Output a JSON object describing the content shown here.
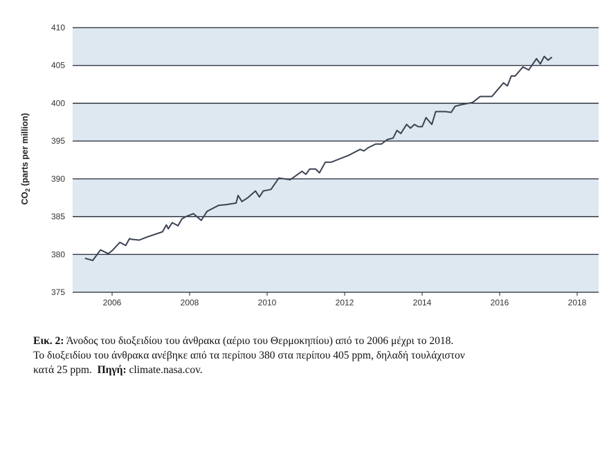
{
  "chart_data": {
    "type": "line",
    "title": "",
    "xlabel": "",
    "ylabel_main": "CO",
    "ylabel_sub": "2",
    "ylabel_rest": " (parts per million)",
    "xlim": [
      2005,
      2018.5
    ],
    "ylim": [
      375,
      410
    ],
    "xticks": [
      2006,
      2008,
      2010,
      2012,
      2014,
      2016,
      2018
    ],
    "xtick_labels": [
      "2006",
      "2008",
      "2010",
      "2012",
      "2014",
      "2016",
      "2018"
    ],
    "yticks": [
      375,
      380,
      385,
      390,
      395,
      400,
      405,
      410
    ],
    "ytick_labels": [
      "375",
      "380",
      "385",
      "390",
      "395",
      "400",
      "405",
      "410"
    ],
    "band_color": "#dde8f0",
    "line_color": "#3a4252",
    "grid_color": "#1e2430",
    "series": [
      {
        "name": "CO2",
        "x": [
          2005.3,
          2005.5,
          2005.7,
          2005.9,
          2006.0,
          2006.2,
          2006.35,
          2006.45,
          2006.5,
          2006.7,
          2006.9,
          2007.3,
          2007.4,
          2007.45,
          2007.55,
          2007.7,
          2007.8,
          2007.9,
          2008.1,
          2008.3,
          2008.45,
          2008.6,
          2008.75,
          2008.95,
          2009.2,
          2009.25,
          2009.35,
          2009.5,
          2009.7,
          2009.8,
          2009.9,
          2010.1,
          2010.3,
          2010.6,
          2010.9,
          2011.0,
          2011.1,
          2011.25,
          2011.35,
          2011.5,
          2011.65,
          2011.8,
          2012.1,
          2012.4,
          2012.5,
          2012.6,
          2012.8,
          2012.95,
          2013.1,
          2013.25,
          2013.35,
          2013.45,
          2013.6,
          2013.7,
          2013.8,
          2013.9,
          2014.0,
          2014.1,
          2014.25,
          2014.35,
          2014.6,
          2014.75,
          2014.85,
          2015.0,
          2015.3,
          2015.5,
          2015.8,
          2015.95,
          2016.1,
          2016.2,
          2016.3,
          2016.4,
          2016.6,
          2016.75,
          2016.95,
          2017.05,
          2017.15,
          2017.25,
          2017.35
        ],
        "values": [
          379.5,
          379.2,
          380.6,
          380.1,
          380.5,
          381.6,
          381.2,
          382.1,
          382.0,
          381.9,
          382.3,
          383.0,
          383.9,
          383.4,
          384.2,
          383.8,
          384.7,
          385.0,
          385.4,
          384.5,
          385.7,
          386.1,
          386.5,
          386.6,
          386.8,
          387.8,
          387.0,
          387.5,
          388.4,
          387.6,
          388.4,
          388.6,
          390.1,
          389.9,
          391.0,
          390.6,
          391.3,
          391.3,
          390.8,
          392.2,
          392.2,
          392.5,
          393.1,
          393.9,
          393.7,
          394.1,
          394.6,
          394.6,
          395.2,
          395.4,
          396.4,
          396.0,
          397.2,
          396.7,
          397.2,
          396.9,
          396.9,
          398.1,
          397.2,
          398.9,
          398.9,
          398.8,
          399.6,
          399.8,
          400.1,
          400.9,
          400.9,
          401.8,
          402.7,
          402.3,
          403.6,
          403.6,
          404.8,
          404.4,
          405.9,
          405.2,
          406.2,
          405.7,
          406.1
        ]
      }
    ]
  },
  "caption": {
    "label": "Εικ. 2:",
    "line1_rest": " Άνοδος του διοξειδίου του άνθρακα (αέριο του Θερμοκηπίου) από το 2006 μέχρι το 2018.",
    "line2": "Το διοξειδίου του άνθρακα ανέβηκε από τα περίπου 380 στα περίπου 405 ppm, δηλαδή τουλάχιστον",
    "line3_start": "κατά 25 ppm.",
    "source_label": "Πηγή:",
    "source_value": " climate.nasa.cov."
  }
}
